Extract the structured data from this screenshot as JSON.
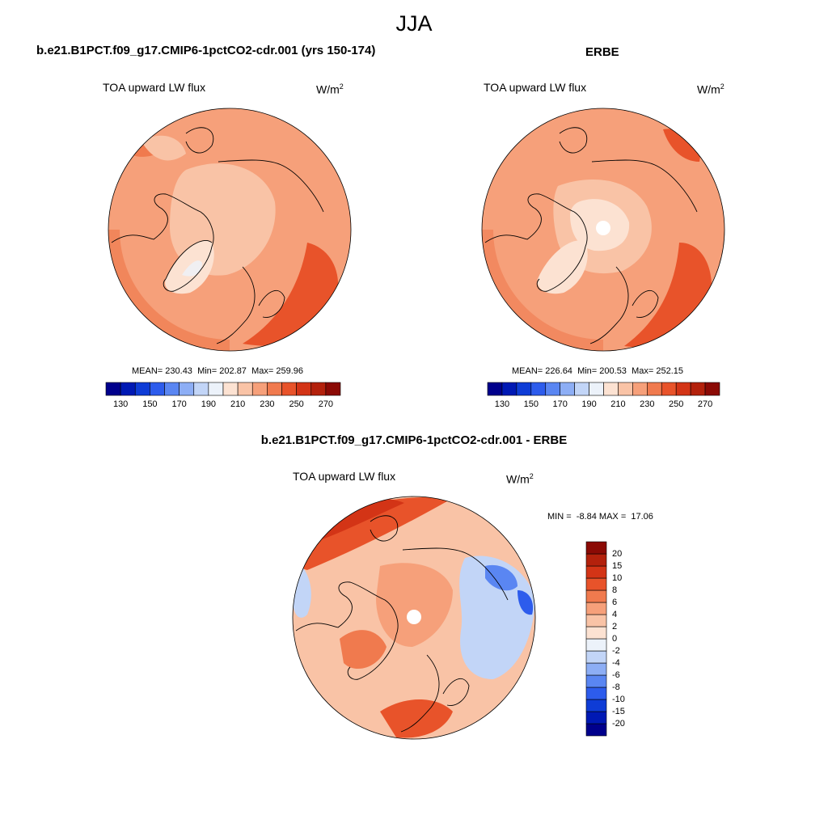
{
  "figure": {
    "season_title": "JJA"
  },
  "chart_data": [
    {
      "type": "polar-contour-map",
      "case_title": "b.e21.B1PCT.f09_g17.CMIP6-1pctCO2-cdr.001 (yrs 150-174)",
      "variable": "TOA upward LW flux",
      "units": "W/m",
      "units_superscript": "2",
      "stats": {
        "mean_label": "MEAN=",
        "mean": "230.43",
        "min_label": "Min=",
        "min": "202.87",
        "max_label": "Max=",
        "max": "259.96"
      },
      "colorbar": {
        "ticks": [
          "130",
          "150",
          "170",
          "190",
          "210",
          "230",
          "250",
          "270"
        ],
        "levels": [
          130,
          140,
          150,
          160,
          170,
          180,
          190,
          200,
          210,
          220,
          230,
          240,
          250,
          260,
          270
        ],
        "colors": [
          "#00008C",
          "#0019B4",
          "#0E3CD6",
          "#2D5CEC",
          "#5A86F2",
          "#8DAEF5",
          "#C2D5F7",
          "#ECF2FA",
          "#FCE2D2",
          "#F9C3A6",
          "#F6A07A",
          "#F07A4E",
          "#E8532A",
          "#D33416",
          "#B3210C",
          "#8B0A05"
        ]
      },
      "fill_hint": {
        "base": "#F6A07A",
        "center": "#F9C3A6",
        "greenland": "#FCE2D2",
        "edge": "#F07A4E"
      }
    },
    {
      "type": "polar-contour-map",
      "case_title": "ERBE",
      "variable": "TOA upward LW flux",
      "units": "W/m",
      "units_superscript": "2",
      "stats": {
        "mean_label": "MEAN=",
        "mean": "226.64",
        "min_label": "Min=",
        "min": "200.53",
        "max_label": "Max=",
        "max": "252.15"
      },
      "colorbar": {
        "ticks": [
          "130",
          "150",
          "170",
          "190",
          "210",
          "230",
          "250",
          "270"
        ],
        "levels": [
          130,
          140,
          150,
          160,
          170,
          180,
          190,
          200,
          210,
          220,
          230,
          240,
          250,
          260,
          270
        ],
        "colors": [
          "#00008C",
          "#0019B4",
          "#0E3CD6",
          "#2D5CEC",
          "#5A86F2",
          "#8DAEF5",
          "#C2D5F7",
          "#ECF2FA",
          "#FCE2D2",
          "#F9C3A6",
          "#F6A07A",
          "#F07A4E",
          "#E8532A",
          "#D33416",
          "#B3210C",
          "#8B0A05"
        ]
      },
      "fill_hint": {
        "base": "#F6A07A",
        "center": "#FCE2D2",
        "greenland": "#FCE2D2",
        "edge": "#F07A4E"
      }
    },
    {
      "type": "polar-contour-map-difference",
      "case_title": "b.e21.B1PCT.f09_g17.CMIP6-1pctCO2-cdr.001 - ERBE",
      "variable": "TOA upward LW flux",
      "units": "W/m",
      "units_superscript": "2",
      "stats": {
        "min_label": "MIN =",
        "min": "-8.84",
        "max_label": "MAX =",
        "max": "17.06"
      },
      "colorbar": {
        "ticks": [
          "20",
          "15",
          "10",
          "8",
          "6",
          "4",
          "2",
          "0",
          "-2",
          "-4",
          "-6",
          "-8",
          "-10",
          "-15",
          "-20"
        ],
        "levels": [
          -20,
          -15,
          -10,
          -8,
          -6,
          -4,
          -2,
          0,
          2,
          4,
          6,
          8,
          10,
          15,
          20
        ],
        "colors": [
          "#00008C",
          "#0019B4",
          "#0E3CD6",
          "#2D5CEC",
          "#5A86F2",
          "#8DAEF5",
          "#C2D5F7",
          "#ECF2FA",
          "#FCE2D2",
          "#F9C3A6",
          "#F6A07A",
          "#F07A4E",
          "#E8532A",
          "#D33416",
          "#B3210C",
          "#8B0A05"
        ]
      }
    }
  ]
}
